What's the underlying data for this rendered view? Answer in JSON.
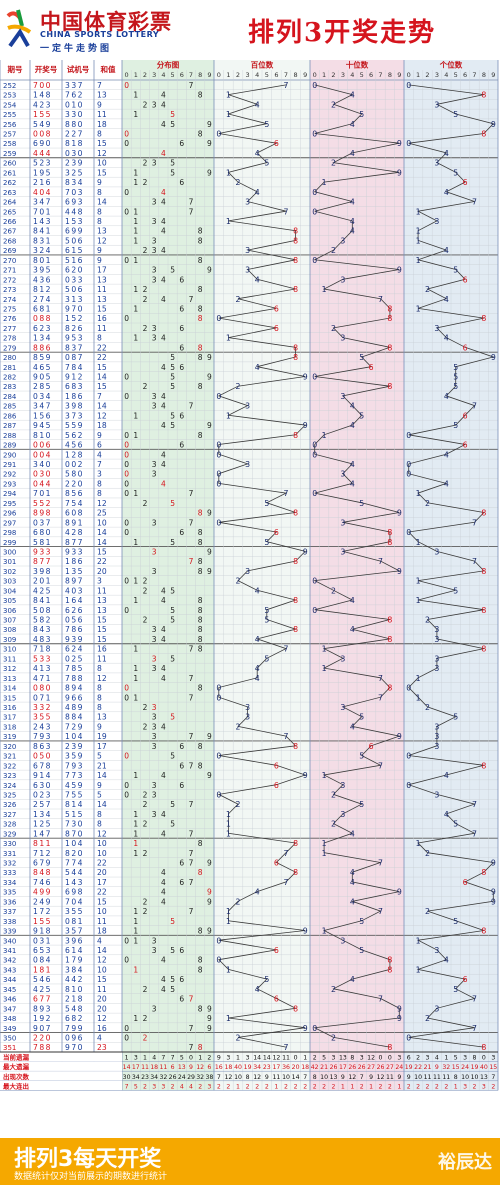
{
  "header": {
    "brand_cn": "中国体育彩票",
    "brand_en": "CHINA SPORTS LOTTERY",
    "slogan": "一定牛走势图",
    "title": "排列3开奖走势"
  },
  "footer": {
    "title": "排列3每天开奖",
    "note": "数据统计仅对当前展示的期数进行统计",
    "watermark": "裕辰达"
  },
  "colors": {
    "accent": "#d5141d",
    "brand_blue": "#1a3f9a",
    "footer": "#f5a800"
  },
  "table": {
    "headers": [
      "期号",
      "开奖号",
      "试机号",
      "和值"
    ],
    "sections": [
      "分布图",
      "百位数",
      "十位数",
      "个位数"
    ],
    "digits": [
      "0",
      "1",
      "2",
      "3",
      "4",
      "5",
      "6",
      "7",
      "8",
      "9"
    ],
    "stat_labels": [
      "当前遗漏",
      "最大遗漏",
      "出现次数",
      "最大连出"
    ]
  },
  "chart_data": {
    "type": "table",
    "rows": [
      [
        "252",
        "700",
        "337",
        "7"
      ],
      [
        "253",
        "148",
        "762",
        "13"
      ],
      [
        "254",
        "423",
        "010",
        "9"
      ],
      [
        "255",
        "155",
        "330",
        "11"
      ],
      [
        "256",
        "549",
        "880",
        "18"
      ],
      [
        "257",
        "008",
        "227",
        "8"
      ],
      [
        "258",
        "690",
        "818",
        "15"
      ],
      [
        "259",
        "444",
        "030",
        "12"
      ],
      [
        "260",
        "523",
        "239",
        "10"
      ],
      [
        "261",
        "195",
        "325",
        "15"
      ],
      [
        "262",
        "216",
        "834",
        "9"
      ],
      [
        "263",
        "404",
        "703",
        "8"
      ],
      [
        "264",
        "347",
        "693",
        "14"
      ],
      [
        "265",
        "701",
        "448",
        "8"
      ],
      [
        "266",
        "143",
        "153",
        "8"
      ],
      [
        "267",
        "841",
        "699",
        "13"
      ],
      [
        "268",
        "831",
        "506",
        "12"
      ],
      [
        "269",
        "324",
        "615",
        "9"
      ],
      [
        "270",
        "801",
        "516",
        "9"
      ],
      [
        "271",
        "395",
        "620",
        "17"
      ],
      [
        "272",
        "436",
        "033",
        "13"
      ],
      [
        "273",
        "812",
        "506",
        "11"
      ],
      [
        "274",
        "274",
        "313",
        "13"
      ],
      [
        "275",
        "681",
        "970",
        "15"
      ],
      [
        "276",
        "088",
        "152",
        "16"
      ],
      [
        "277",
        "623",
        "826",
        "11"
      ],
      [
        "278",
        "134",
        "953",
        "8"
      ],
      [
        "279",
        "886",
        "837",
        "22"
      ],
      [
        "280",
        "859",
        "087",
        "22"
      ],
      [
        "281",
        "465",
        "784",
        "15"
      ],
      [
        "282",
        "905",
        "912",
        "14"
      ],
      [
        "283",
        "285",
        "683",
        "15"
      ],
      [
        "284",
        "034",
        "186",
        "7"
      ],
      [
        "285",
        "347",
        "398",
        "14"
      ],
      [
        "286",
        "156",
        "373",
        "12"
      ],
      [
        "287",
        "945",
        "559",
        "18"
      ],
      [
        "288",
        "810",
        "562",
        "9"
      ],
      [
        "289",
        "006",
        "456",
        "6"
      ],
      [
        "290",
        "004",
        "128",
        "4"
      ],
      [
        "291",
        "340",
        "002",
        "7"
      ],
      [
        "292",
        "030",
        "580",
        "3"
      ],
      [
        "293",
        "044",
        "220",
        "8"
      ],
      [
        "294",
        "701",
        "856",
        "8"
      ],
      [
        "295",
        "552",
        "754",
        "12"
      ],
      [
        "296",
        "898",
        "608",
        "25"
      ],
      [
        "297",
        "037",
        "891",
        "10"
      ],
      [
        "298",
        "680",
        "428",
        "14"
      ],
      [
        "299",
        "581",
        "877",
        "14"
      ],
      [
        "300",
        "933",
        "933",
        "15"
      ],
      [
        "301",
        "877",
        "186",
        "22"
      ],
      [
        "302",
        "398",
        "135",
        "20"
      ],
      [
        "303",
        "201",
        "897",
        "3"
      ],
      [
        "304",
        "425",
        "403",
        "11"
      ],
      [
        "305",
        "841",
        "164",
        "13"
      ],
      [
        "306",
        "508",
        "626",
        "13"
      ],
      [
        "307",
        "582",
        "056",
        "15"
      ],
      [
        "308",
        "843",
        "786",
        "15"
      ],
      [
        "309",
        "483",
        "939",
        "15"
      ],
      [
        "310",
        "718",
        "624",
        "16"
      ],
      [
        "311",
        "533",
        "025",
        "11"
      ],
      [
        "312",
        "413",
        "785",
        "8"
      ],
      [
        "313",
        "471",
        "788",
        "12"
      ],
      [
        "314",
        "080",
        "894",
        "8"
      ],
      [
        "315",
        "071",
        "966",
        "8"
      ],
      [
        "316",
        "332",
        "489",
        "8"
      ],
      [
        "317",
        "355",
        "884",
        "13"
      ],
      [
        "318",
        "243",
        "729",
        "9"
      ],
      [
        "319",
        "793",
        "104",
        "19"
      ],
      [
        "320",
        "863",
        "239",
        "17"
      ],
      [
        "321",
        "050",
        "359",
        "5"
      ],
      [
        "322",
        "678",
        "793",
        "21"
      ],
      [
        "323",
        "914",
        "773",
        "14"
      ],
      [
        "324",
        "630",
        "459",
        "9"
      ],
      [
        "325",
        "023",
        "755",
        "5"
      ],
      [
        "326",
        "257",
        "814",
        "14"
      ],
      [
        "327",
        "134",
        "515",
        "8"
      ],
      [
        "328",
        "125",
        "730",
        "8"
      ],
      [
        "329",
        "147",
        "870",
        "12"
      ],
      [
        "330",
        "811",
        "104",
        "10"
      ],
      [
        "331",
        "712",
        "820",
        "10"
      ],
      [
        "332",
        "679",
        "774",
        "22"
      ],
      [
        "333",
        "848",
        "544",
        "20"
      ],
      [
        "334",
        "746",
        "143",
        "17"
      ],
      [
        "335",
        "499",
        "698",
        "22"
      ],
      [
        "336",
        "249",
        "704",
        "15"
      ],
      [
        "337",
        "172",
        "355",
        "10"
      ],
      [
        "338",
        "155",
        "081",
        "11"
      ],
      [
        "339",
        "918",
        "357",
        "18"
      ],
      [
        "340",
        "031",
        "396",
        "4"
      ],
      [
        "341",
        "653",
        "614",
        "14"
      ],
      [
        "342",
        "084",
        "179",
        "12"
      ],
      [
        "343",
        "181",
        "384",
        "10"
      ],
      [
        "344",
        "546",
        "442",
        "15"
      ],
      [
        "345",
        "425",
        "810",
        "11"
      ],
      [
        "346",
        "677",
        "218",
        "20"
      ],
      [
        "347",
        "893",
        "548",
        "20"
      ],
      [
        "348",
        "192",
        "682",
        "12"
      ],
      [
        "349",
        "907",
        "799",
        "16"
      ],
      [
        "350",
        "220",
        "096",
        "4"
      ],
      [
        "351",
        "788",
        "970",
        "23"
      ]
    ],
    "stats": {
      "当前遗漏": {
        "dist": [
          1,
          3,
          1,
          4,
          7,
          7,
          5,
          0,
          1,
          2
        ],
        "hundreds": [
          9,
          3,
          1,
          3,
          14,
          14,
          12,
          11,
          0,
          1
        ],
        "tens": [
          2,
          5,
          3,
          13,
          8,
          3,
          12,
          0,
          0,
          3
        ],
        "units": [
          6,
          2,
          3,
          4,
          1,
          5,
          3,
          8,
          0,
          3
        ]
      },
      "最大遗漏": {
        "dist": [
          14,
          17,
          11,
          18,
          11,
          6,
          13,
          9,
          12,
          6
        ],
        "hundreds": [
          16,
          18,
          40,
          19,
          34,
          23,
          17,
          36,
          20,
          18
        ],
        "tens": [
          42,
          21,
          26,
          17,
          26,
          26,
          27,
          26,
          27,
          24
        ],
        "units": [
          19,
          22,
          21,
          9,
          32,
          15,
          24,
          19,
          40,
          15
        ]
      },
      "出现次数": {
        "dist": [
          30,
          34,
          23,
          34,
          32,
          26,
          24,
          29,
          32,
          38
        ],
        "hundreds": [
          7,
          12,
          10,
          8,
          12,
          9,
          11,
          10,
          14,
          7
        ],
        "tens": [
          8,
          10,
          13,
          9,
          12,
          7,
          9,
          12,
          11,
          9
        ],
        "units": [
          9,
          10,
          11,
          11,
          11,
          8,
          10,
          10,
          13,
          7
        ]
      },
      "最大连出": {
        "dist": [
          7,
          5,
          2,
          3,
          3,
          2,
          4,
          4,
          2,
          3
        ],
        "hundreds": [
          2,
          2,
          1,
          2,
          2,
          2,
          1,
          2,
          2,
          2
        ],
        "tens": [
          2,
          2,
          2,
          1,
          1,
          2,
          1,
          2,
          2,
          1
        ],
        "units": [
          2,
          2,
          2,
          2,
          2,
          1,
          3,
          2,
          3,
          2
        ]
      }
    }
  }
}
